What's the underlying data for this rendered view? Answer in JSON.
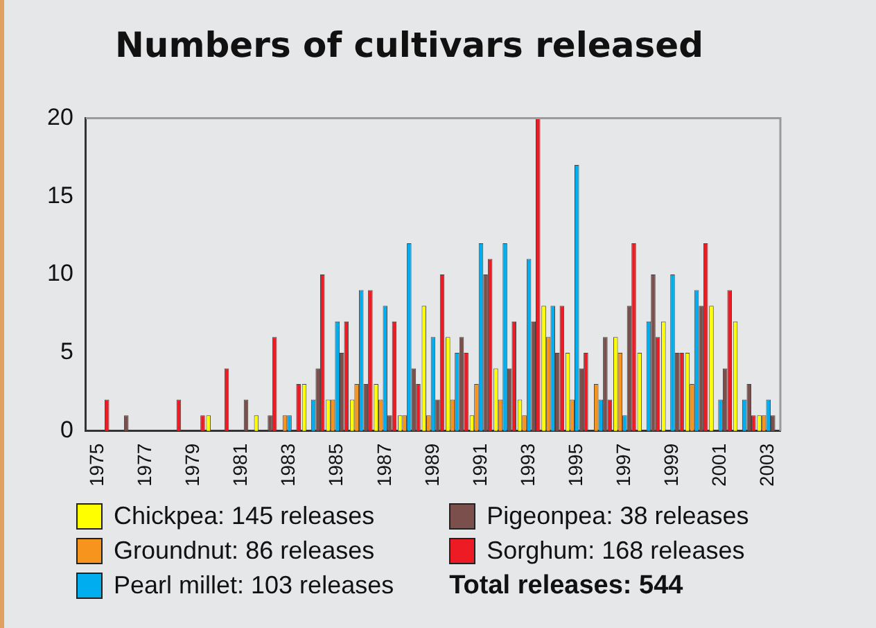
{
  "chart_data": {
    "type": "bar",
    "title": "Numbers of cultivars released",
    "categories": [
      "1975",
      null,
      "1977",
      null,
      "1979",
      null,
      "1981",
      null,
      "1983",
      null,
      "1985",
      null,
      "1987",
      null,
      "1989",
      null,
      "1991",
      null,
      "1993",
      null,
      "1995",
      null,
      "1997",
      null,
      "1999",
      null,
      "2001",
      null,
      "2003"
    ],
    "series": [
      {
        "name": "Chickpea:  145 releases",
        "color": "#ffff00",
        "values": [
          0,
          0,
          0,
          0,
          0,
          1,
          0,
          1,
          0,
          3,
          2,
          2,
          3,
          1,
          8,
          6,
          1,
          4,
          2,
          8,
          5,
          0,
          6,
          5,
          7,
          5,
          8,
          7,
          1
        ]
      },
      {
        "name": "Groundnut:  86 releases",
        "color": "#f7941d",
        "values": [
          0,
          0,
          0,
          0,
          0,
          0,
          0,
          0,
          1,
          0,
          2,
          3,
          2,
          1,
          1,
          2,
          3,
          2,
          1,
          6,
          2,
          3,
          5,
          0,
          0,
          3,
          0,
          0,
          1
        ]
      },
      {
        "name": "Pearl millet: 103 releases",
        "color": "#00aeef",
        "values": [
          0,
          0,
          0,
          0,
          0,
          0,
          0,
          0,
          1,
          2,
          7,
          9,
          8,
          12,
          6,
          5,
          12,
          12,
          11,
          8,
          17,
          2,
          1,
          7,
          10,
          9,
          2,
          2,
          2
        ]
      },
      {
        "name": "Pigeonpea: 38 releases",
        "color": "#7b4f4b",
        "values": [
          0,
          1,
          0,
          0,
          0,
          0,
          2,
          1,
          0,
          4,
          5,
          3,
          1,
          4,
          2,
          6,
          10,
          4,
          7,
          5,
          4,
          6,
          8,
          10,
          5,
          8,
          4,
          3,
          1
        ]
      },
      {
        "name": "Sorghum: 168 releases",
        "color": "#ed1c24",
        "values": [
          2,
          0,
          0,
          2,
          1,
          4,
          0,
          6,
          3,
          10,
          7,
          9,
          7,
          3,
          10,
          5,
          11,
          7,
          20,
          8,
          5,
          2,
          12,
          6,
          5,
          12,
          9,
          1,
          0
        ]
      }
    ],
    "ylim": [
      0,
      20
    ],
    "yticks": [
      0,
      5,
      10,
      15,
      20
    ],
    "grid": false,
    "legend": "bottom",
    "annotations": [
      "Total releases: 544"
    ]
  }
}
